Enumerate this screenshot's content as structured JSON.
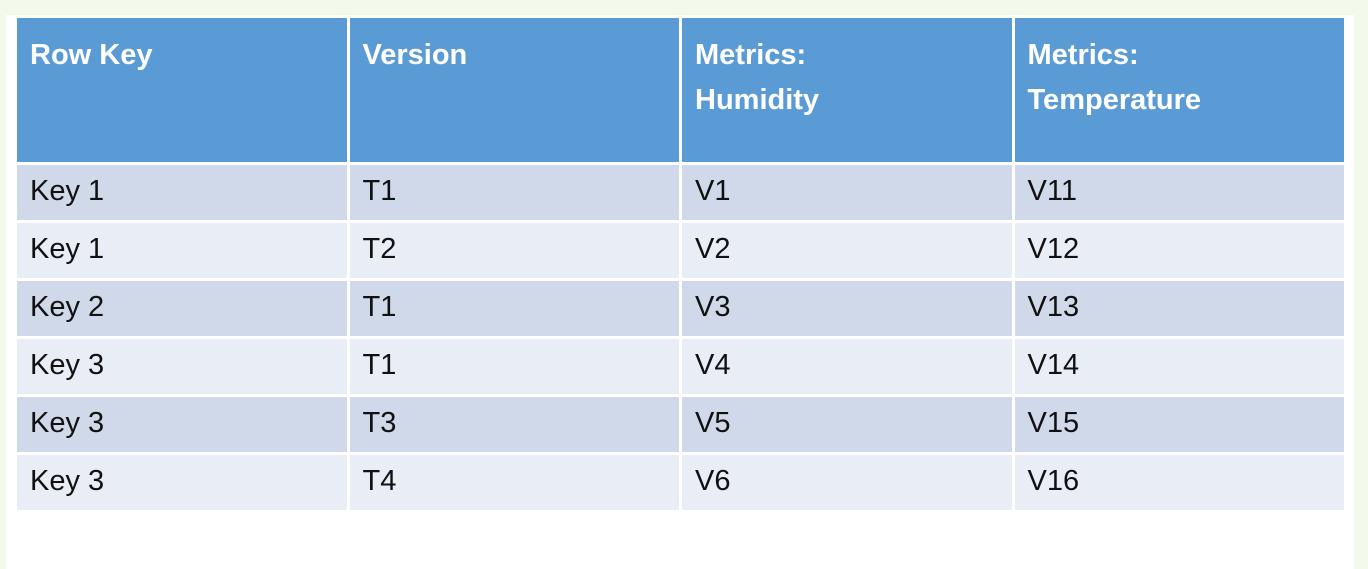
{
  "page": {
    "background": "#ffffff",
    "edge_tint": "#f3faec"
  },
  "table": {
    "style": {
      "header_bg": "#5b9bd5",
      "header_text": "#ffffff",
      "band_dark": "#cfd9ea",
      "band_light": "#e9edf6",
      "grid": "#ffffff",
      "body_text": "#111111"
    },
    "columns": [
      {
        "id": "row-key",
        "label": "Row Key"
      },
      {
        "id": "version",
        "label": "Version"
      },
      {
        "id": "metrics-humidity",
        "label": "Metrics:\nHumidity"
      },
      {
        "id": "metrics-temperature",
        "label": "Metrics:\nTemperature"
      }
    ],
    "rows": [
      [
        "Key 1",
        "T1",
        "V1",
        "V11"
      ],
      [
        "Key 1",
        "T2",
        "V2",
        "V12"
      ],
      [
        "Key 2",
        "T1",
        "V3",
        "V13"
      ],
      [
        "Key 3",
        "T1",
        "V4",
        "V14"
      ],
      [
        "Key 3",
        "T3",
        "V5",
        "V15"
      ],
      [
        "Key 3",
        "T4",
        "V6",
        "V16"
      ]
    ]
  }
}
